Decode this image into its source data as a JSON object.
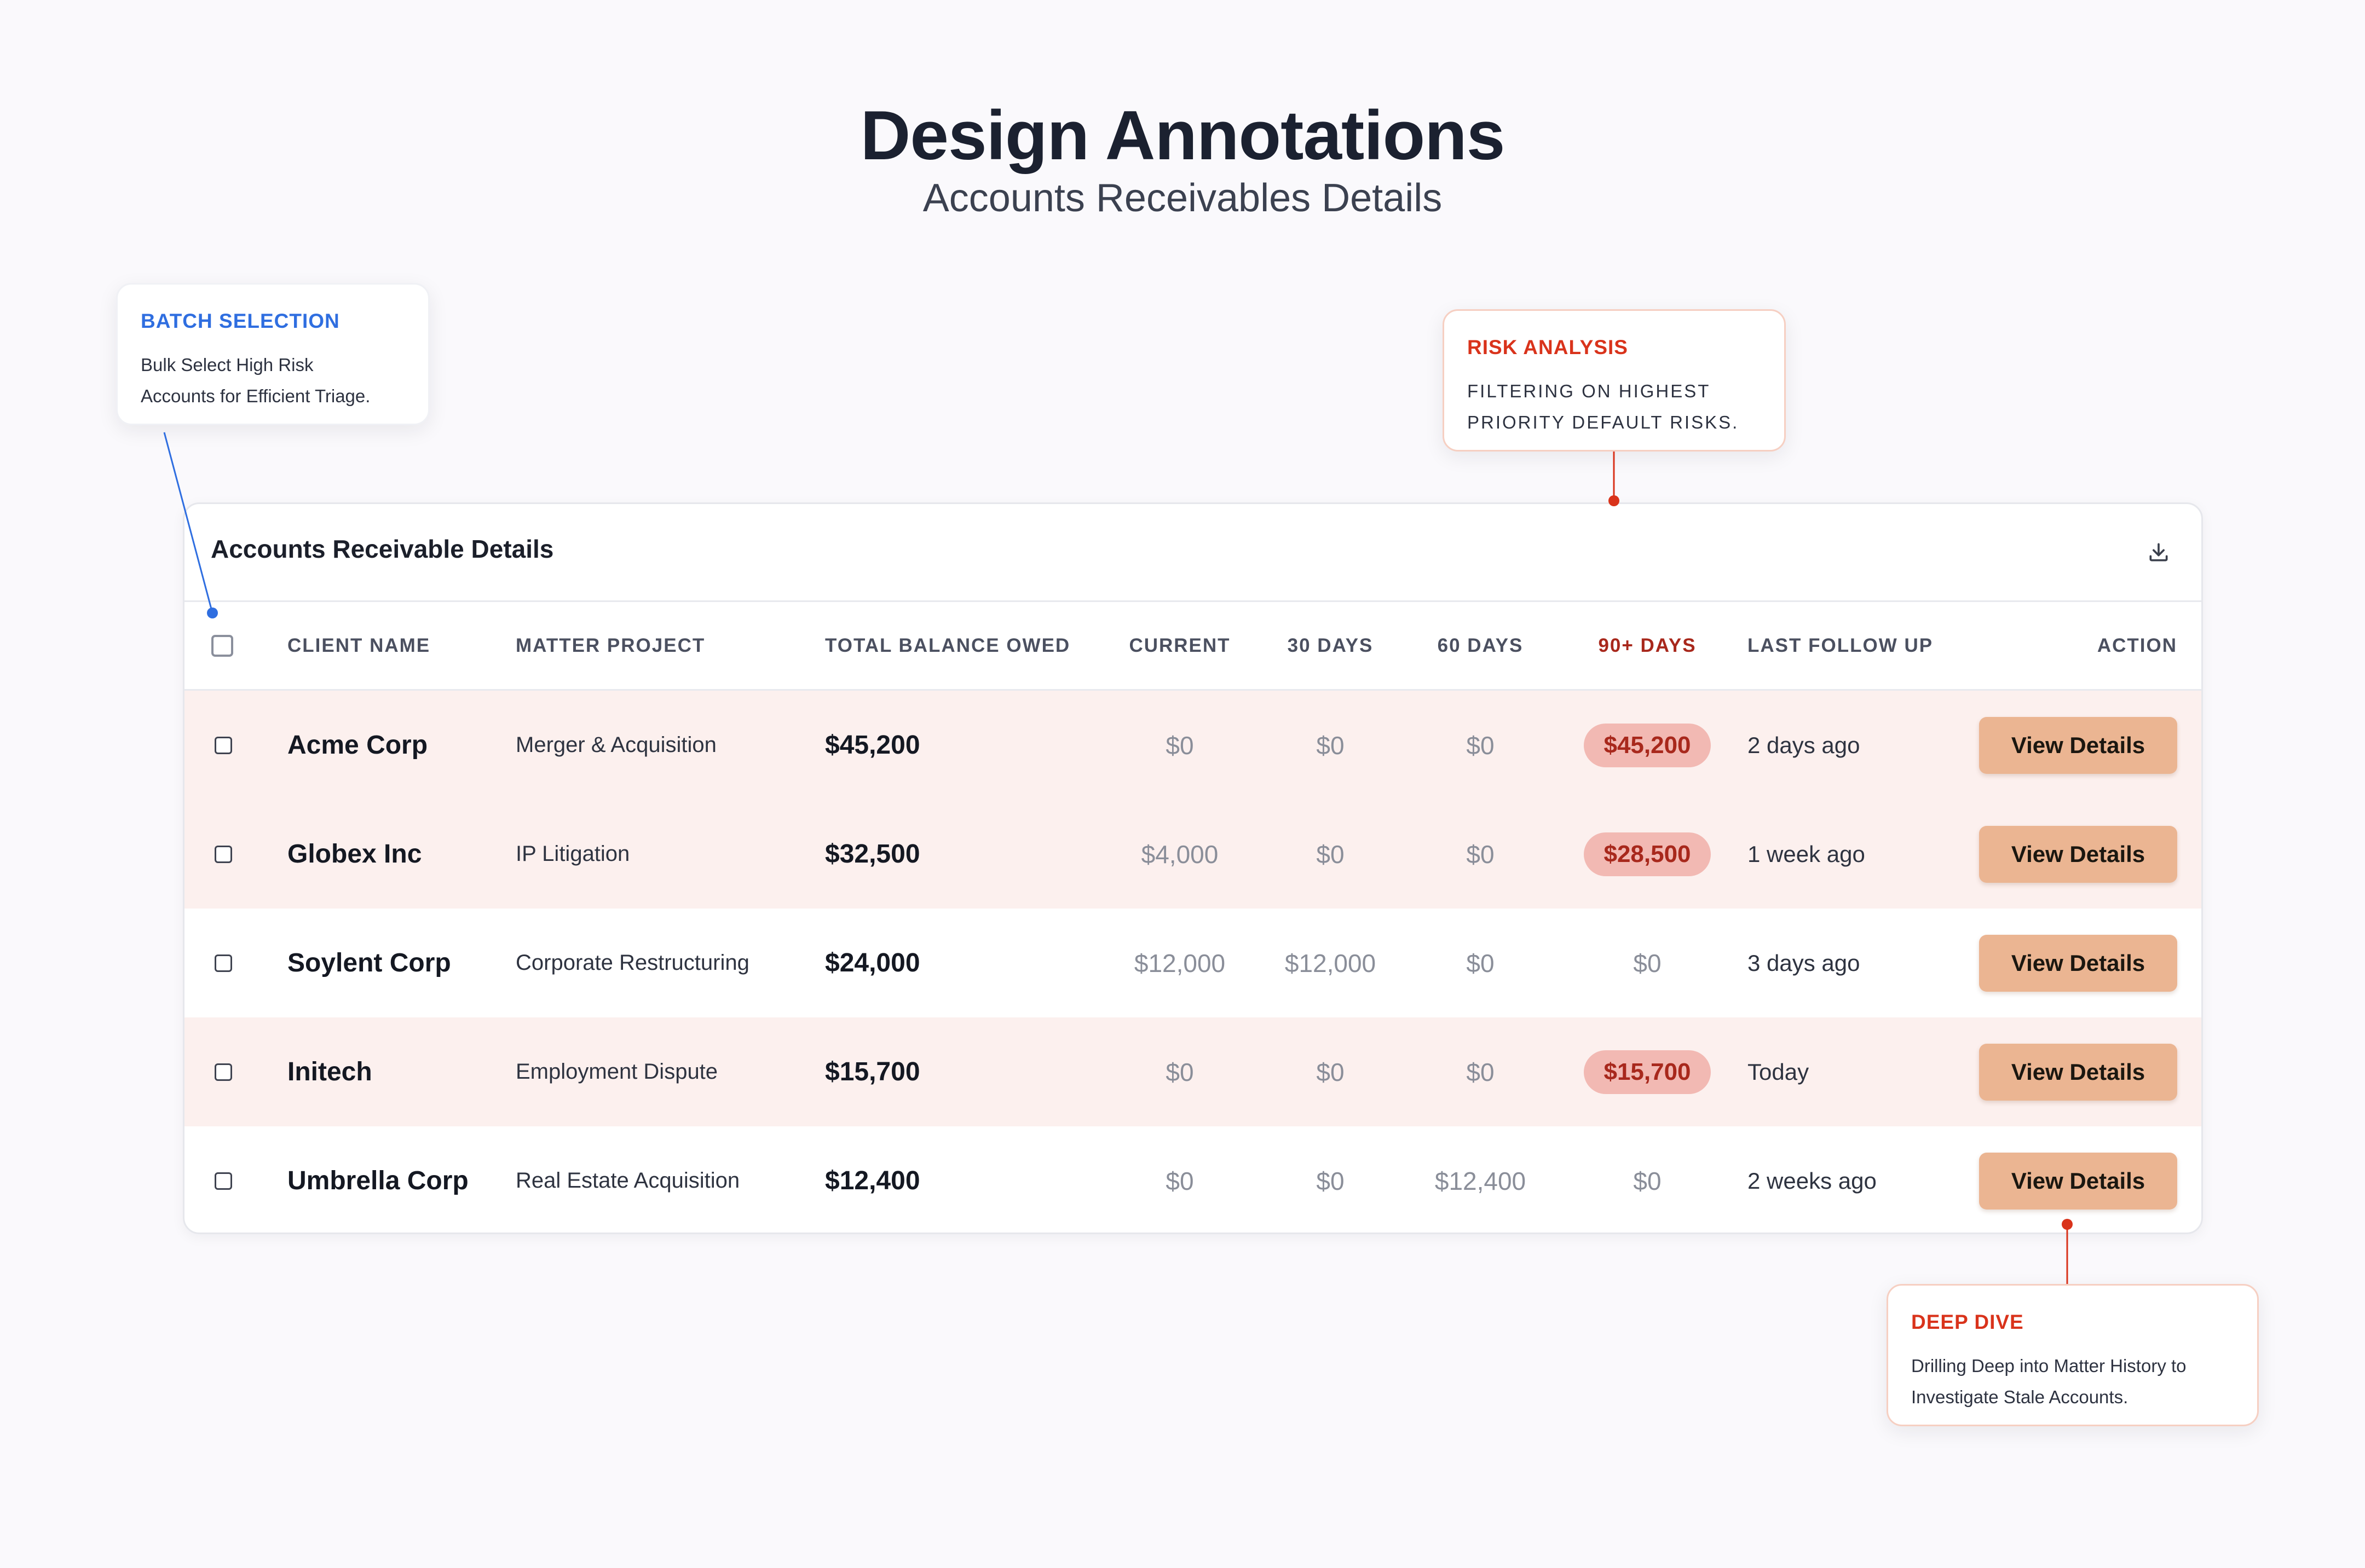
{
  "header": {
    "title": "Design Annotations",
    "subtitle": "Accounts Receivables Details"
  },
  "callouts": {
    "batch": {
      "title": "BATCH SELECTION",
      "body_line1": "Bulk Select High Risk",
      "body_line2": "Accounts for Efficient Triage.",
      "color": "#2f6ee0"
    },
    "risk": {
      "title": "RISK ANALYSIS",
      "body_line1": "FILTERING ON HIGHEST",
      "body_line2": "PRIORITY DEFAULT RISKS.",
      "color": "#d9331b"
    },
    "dive": {
      "title": "DEEP DIVE",
      "body_line1": "Drilling Deep into Matter History to",
      "body_line2": "Investigate Stale Accounts.",
      "color": "#d9331b"
    }
  },
  "card": {
    "title": "Accounts Receivable Details",
    "download_icon": "download-icon"
  },
  "table": {
    "headers": {
      "client": "CLIENT NAME",
      "matter": "MATTER PROJECT",
      "total": "TOTAL BALANCE OWED",
      "current": "CURRENT",
      "d30": "30 DAYS",
      "d60": "60 DAYS",
      "d90": "90+ DAYS",
      "follow": "LAST FOLLOW UP",
      "action": "ACTION"
    },
    "rows": [
      {
        "client": "Acme Corp",
        "matter": "Merger & Acquisition",
        "total": "$45,200",
        "current": "$0",
        "d30": "$0",
        "d60": "$0",
        "d90": "$45,200",
        "follow": "2 days ago",
        "action": "View Details"
      },
      {
        "client": "Globex Inc",
        "matter": "IP Litigation",
        "total": "$32,500",
        "current": "$4,000",
        "d30": "$0",
        "d60": "$0",
        "d90": "$28,500",
        "follow": "1 week ago",
        "action": "View Details"
      },
      {
        "client": "Soylent Corp",
        "matter": "Corporate Restructuring",
        "total": "$24,000",
        "current": "$12,000",
        "d30": "$12,000",
        "d60": "$0",
        "d90": "$0",
        "follow": "3 days ago",
        "action": "View Details"
      },
      {
        "client": "Initech",
        "matter": "Employment Dispute",
        "total": "$15,700",
        "current": "$0",
        "d30": "$0",
        "d60": "$0",
        "d90": "$15,700",
        "follow": "Today",
        "action": "View Details"
      },
      {
        "client": "Umbrella Corp",
        "matter": "Real Estate Acquisition",
        "total": "$12,400",
        "current": "$0",
        "d30": "$0",
        "d60": "$12,400",
        "d90": "$0",
        "follow": "2 weeks ago",
        "action": "View Details"
      }
    ]
  },
  "colors": {
    "risk_row_tint": "#fcf0ee",
    "risk_pill_bg": "#f2b9b3",
    "risk_pill_text": "#a8281c",
    "action_button": "#ebb592",
    "batch_accent": "#2f6ee0",
    "risk_accent": "#d9331b"
  }
}
